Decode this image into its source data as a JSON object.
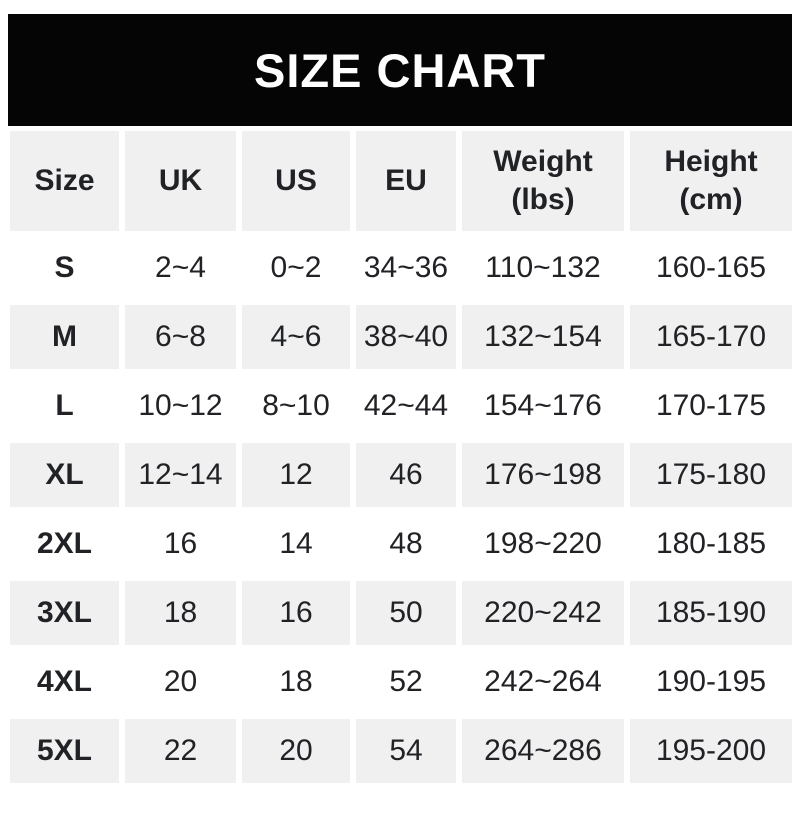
{
  "banner": {
    "title": "SIZE CHART"
  },
  "colors": {
    "banner_bg": "#050505",
    "banner_text": "#ffffff",
    "cell_bg_alt": "#f0f0f1",
    "text": "#212225"
  },
  "chart_data": {
    "type": "table",
    "title": "SIZE CHART",
    "columns": [
      {
        "id": "size",
        "label": "Size"
      },
      {
        "id": "uk",
        "label": "UK"
      },
      {
        "id": "us",
        "label": "US"
      },
      {
        "id": "eu",
        "label": "EU"
      },
      {
        "id": "weight",
        "label": "Weight",
        "sub": "(lbs)"
      },
      {
        "id": "height",
        "label": "Height",
        "sub": "(cm)"
      }
    ],
    "rows": [
      {
        "size": "S",
        "uk": "2~4",
        "us": "0~2",
        "eu": "34~36",
        "weight": "110~132",
        "height": "160-165"
      },
      {
        "size": "M",
        "uk": "6~8",
        "us": "4~6",
        "eu": "38~40",
        "weight": "132~154",
        "height": "165-170"
      },
      {
        "size": "L",
        "uk": "10~12",
        "us": "8~10",
        "eu": "42~44",
        "weight": "154~176",
        "height": "170-175"
      },
      {
        "size": "XL",
        "uk": "12~14",
        "us": "12",
        "eu": "46",
        "weight": "176~198",
        "height": "175-180"
      },
      {
        "size": "2XL",
        "uk": "16",
        "us": "14",
        "eu": "48",
        "weight": "198~220",
        "height": "180-185"
      },
      {
        "size": "3XL",
        "uk": "18",
        "us": "16",
        "eu": "50",
        "weight": "220~242",
        "height": "185-190"
      },
      {
        "size": "4XL",
        "uk": "20",
        "us": "18",
        "eu": "52",
        "weight": "242~264",
        "height": "190-195"
      },
      {
        "size": "5XL",
        "uk": "22",
        "us": "20",
        "eu": "54",
        "weight": "264~286",
        "height": "195-200"
      }
    ]
  }
}
